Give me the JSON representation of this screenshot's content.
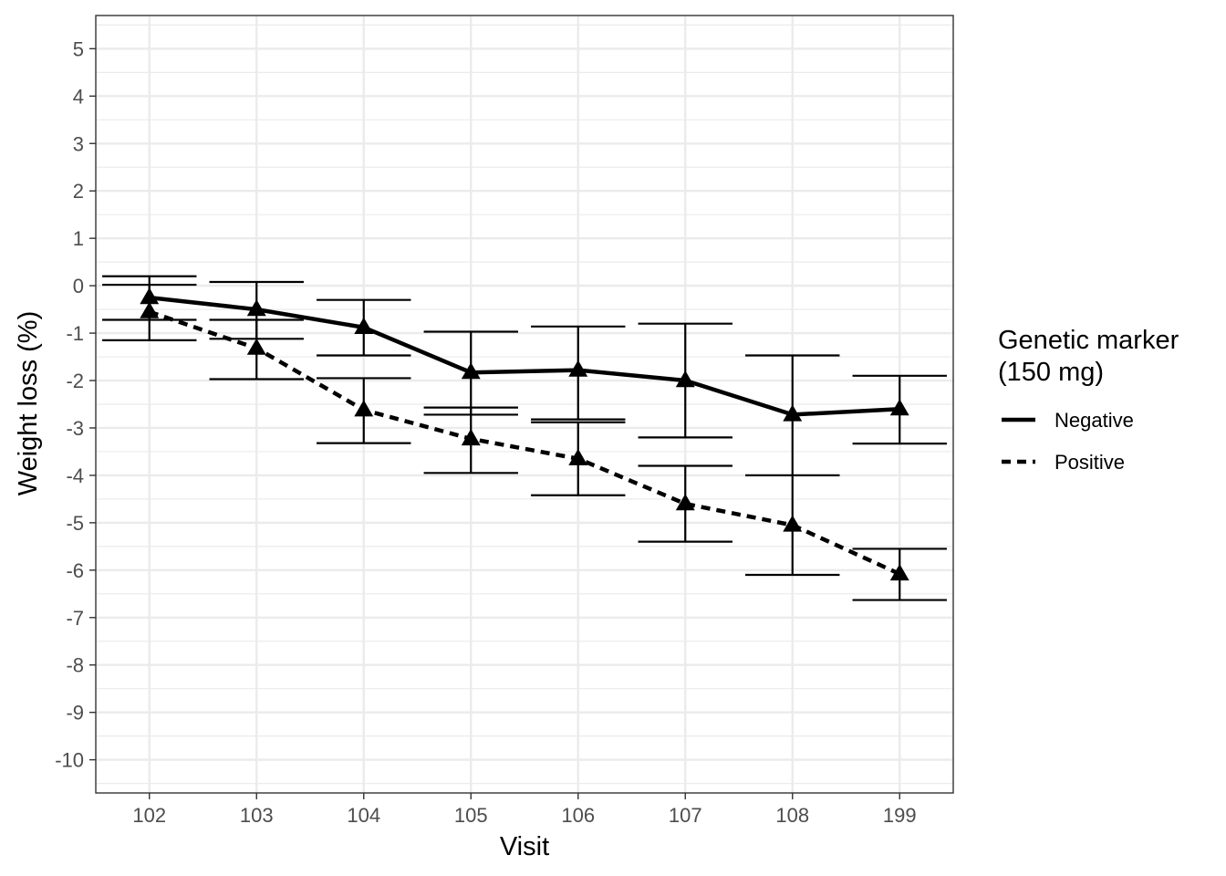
{
  "chart_data": {
    "type": "line",
    "title": "",
    "xlabel": "Visit",
    "ylabel": "Weight loss (%)",
    "categories": [
      "102",
      "103",
      "104",
      "105",
      "106",
      "107",
      "108",
      "199"
    ],
    "ylim": [
      -10.7,
      5.7
    ],
    "yticks": [
      5,
      4,
      3,
      2,
      1,
      0,
      -1,
      -2,
      -3,
      -4,
      -5,
      -6,
      -7,
      -8,
      -9,
      -10
    ],
    "grid": true,
    "legend": {
      "title_lines": [
        "Genetic marker",
        "(150 mg)"
      ],
      "placement": "right"
    },
    "series": [
      {
        "name": "Negative",
        "linestyle": "solid",
        "marker": "triangle",
        "values": [
          -0.25,
          -0.5,
          -0.88,
          -1.83,
          -1.78,
          -2.0,
          -2.72,
          -2.6
        ],
        "lower": [
          -0.72,
          -1.12,
          -1.47,
          -2.72,
          -2.82,
          -3.2,
          -4.0,
          -3.33
        ],
        "upper": [
          0.2,
          0.08,
          -0.3,
          -0.97,
          -0.86,
          -0.8,
          -1.47,
          -1.9
        ]
      },
      {
        "name": "Positive",
        "linestyle": "dashed",
        "marker": "triangle",
        "values": [
          -0.55,
          -1.32,
          -2.62,
          -3.23,
          -3.65,
          -4.6,
          -5.05,
          -6.08
        ],
        "lower": [
          -1.15,
          -1.97,
          -3.32,
          -3.95,
          -4.42,
          -5.4,
          -6.1,
          -6.63
        ],
        "upper": [
          0.02,
          -0.72,
          -1.95,
          -2.57,
          -2.88,
          -3.8,
          -4.0,
          -5.55
        ]
      }
    ],
    "colors": {
      "ink": "#000000",
      "grid": "#ebebeb",
      "panel_border": "#333333",
      "tick_text": "#4d4d4d"
    }
  }
}
